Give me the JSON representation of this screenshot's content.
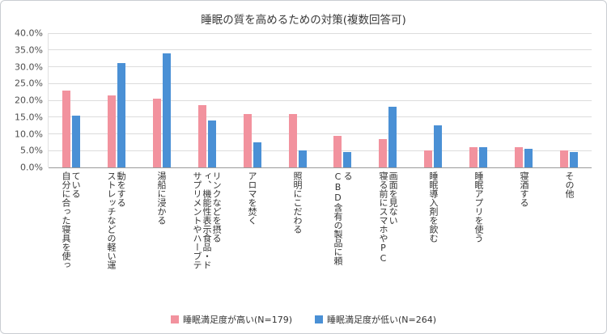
{
  "chart_data": {
    "type": "bar",
    "title": "睡眠の質を高めるための対策(複数回答可)",
    "categories": [
      "自分に合った寝具を使っている",
      "ストレッチなどの軽い運動をする",
      "湯船に浸かる",
      "サプリメントやハーブティ、機能性表示食品・ドリンクなどを摂る",
      "アロマを焚く",
      "照明にこだわる",
      "CBD含有の製品に頼る",
      "寝る前にスマホやPC画面を見ない",
      "睡眠導入剤を飲む",
      "睡眠アプリを使う",
      "寝酒する",
      "その他"
    ],
    "series": [
      {
        "name": "睡眠満足度が高い(N=179)",
        "color": "#F2929E",
        "values": [
          23.0,
          21.5,
          20.5,
          18.5,
          16.0,
          16.0,
          9.5,
          8.5,
          5.0,
          6.0,
          6.0,
          5.0
        ]
      },
      {
        "name": "睡眠満足度が低い(N=264)",
        "color": "#4A90D5",
        "values": [
          15.5,
          31.0,
          34.0,
          14.0,
          7.5,
          5.0,
          4.5,
          18.0,
          12.5,
          6.0,
          5.5,
          4.5
        ]
      }
    ],
    "ylim": [
      0,
      40
    ],
    "ytick_step": 5,
    "ytick_labels": [
      "0.0%",
      "5.0%",
      "10.0%",
      "15.0%",
      "20.0%",
      "25.0%",
      "30.0%",
      "35.0%",
      "40.0%"
    ],
    "grid": true,
    "legend_position": "bottom"
  }
}
